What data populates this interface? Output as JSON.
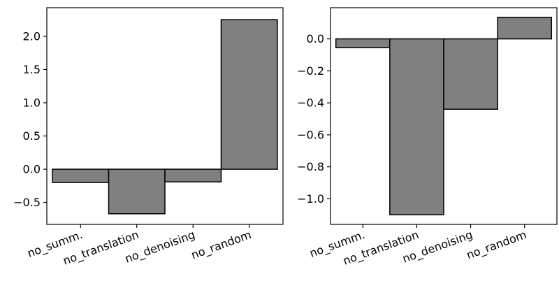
{
  "colors": {
    "bar_fill": "#808080",
    "bar_edge": "#000000",
    "axis": "#000000",
    "background": "#ffffff"
  },
  "chart_data": [
    {
      "type": "bar",
      "title": "",
      "xlabel": "",
      "ylabel": "",
      "categories": [
        "no_summ.",
        "no_translation",
        "no_denoising",
        "no_random"
      ],
      "values": [
        -0.2,
        -0.67,
        -0.19,
        2.25
      ],
      "ylim": [
        -0.83,
        2.43
      ],
      "yticks": [
        -0.5,
        0.0,
        0.5,
        1.0,
        1.5,
        2.0
      ],
      "ytick_labels": [
        "−0.5",
        "0.0",
        "0.5",
        "1.0",
        "1.5",
        "2.0"
      ],
      "grid": false,
      "legend": "none"
    },
    {
      "type": "bar",
      "title": "",
      "xlabel": "",
      "ylabel": "",
      "categories": [
        "no_summ.",
        "no_translation",
        "no_denoising",
        "no_random"
      ],
      "values": [
        -0.055,
        -1.1,
        -0.44,
        0.135
      ],
      "ylim": [
        -1.16,
        0.195
      ],
      "yticks": [
        -1.0,
        -0.8,
        -0.6,
        -0.4,
        -0.2,
        0.0
      ],
      "ytick_labels": [
        "−1.0",
        "−0.8",
        "−0.6",
        "−0.4",
        "−0.2",
        "0.0"
      ],
      "grid": false,
      "legend": "none"
    }
  ]
}
